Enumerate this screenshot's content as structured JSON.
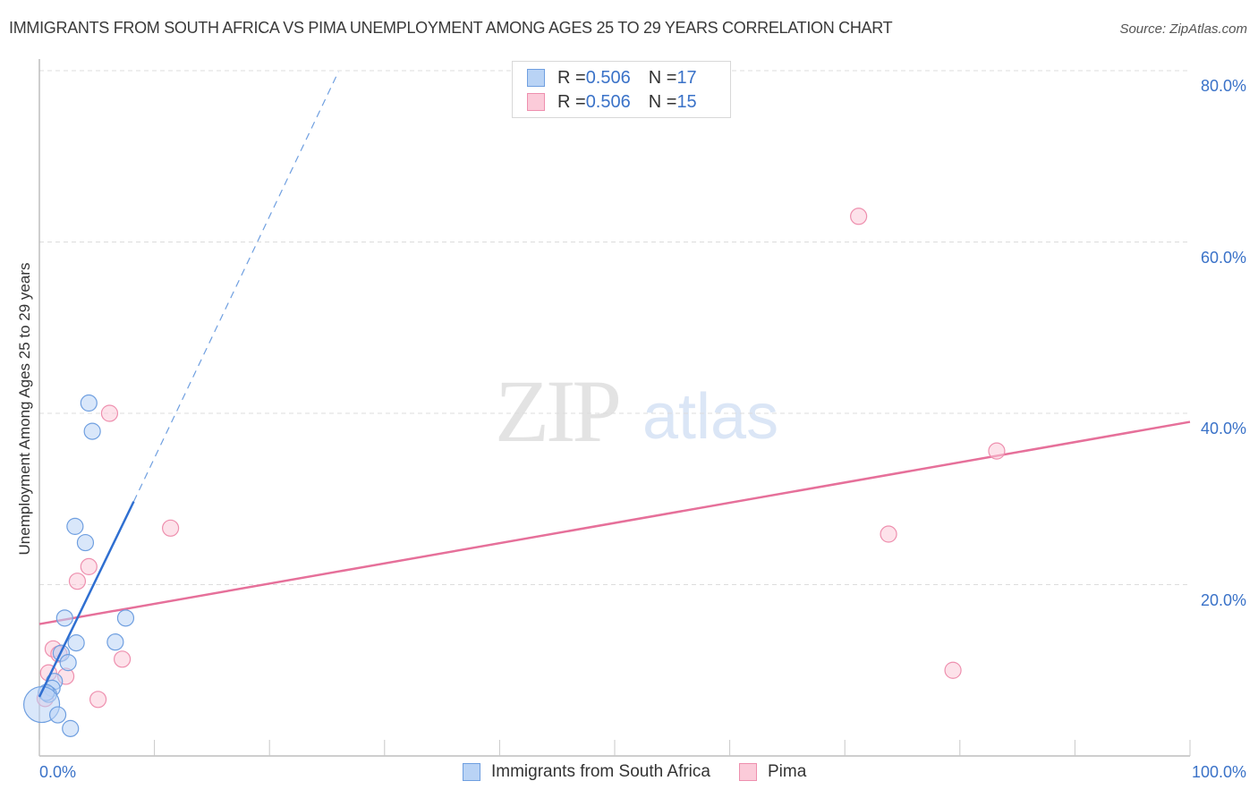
{
  "header": {
    "title": "IMMIGRANTS FROM SOUTH AFRICA VS PIMA UNEMPLOYMENT AMONG AGES 25 TO 29 YEARS CORRELATION CHART",
    "source": "Source: ZipAtlas.com"
  },
  "watermark": {
    "zip": "ZIP",
    "atlas": "atlas"
  },
  "legend_top": {
    "rows": [
      {
        "r_label": "R = ",
        "r_value": "0.506",
        "n_label": "N = ",
        "n_value": "17",
        "color": "#a9c8f0",
        "border": "#6f9fe0"
      },
      {
        "r_label": "R = ",
        "r_value": "0.506",
        "n_label": "N = ",
        "n_value": "15",
        "color": "#f9c3d4",
        "border": "#ee8fae"
      }
    ]
  },
  "legend_bottom": [
    {
      "label": "Immigrants from South Africa",
      "color": "#b9d3f5",
      "border": "#6f9fe0"
    },
    {
      "label": "Pima",
      "color": "#fbcbd9",
      "border": "#ee8fae"
    }
  ],
  "axes": {
    "y_title": "Unemployment Among Ages 25 to 29 years",
    "y_ticks": [
      "80.0%",
      "60.0%",
      "40.0%",
      "20.0%"
    ],
    "x_left": "0.0%",
    "x_right": "100.0%"
  },
  "chart_data": {
    "type": "scatter",
    "title": "IMMIGRANTS FROM SOUTH AFRICA VS PIMA UNEMPLOYMENT AMONG AGES 25 TO 29 YEARS CORRELATION CHART",
    "xlabel": "",
    "ylabel": "Unemployment Among Ages 25 to 29 years",
    "xlim": [
      0,
      100
    ],
    "ylim": [
      0,
      80
    ],
    "y_ticks": [
      20,
      40,
      60,
      80
    ],
    "x_tick_labels": [
      "0.0%",
      "100.0%"
    ],
    "grid": true,
    "legend_position": "top-center and bottom-center",
    "series": [
      {
        "name": "Immigrants from South Africa",
        "color": "#6f9fe0",
        "fill": "#b9d3f5",
        "R": 0.506,
        "N": 17,
        "points": [
          {
            "x": 4.3,
            "y": 41.2
          },
          {
            "x": 4.6,
            "y": 37.9
          },
          {
            "x": 3.1,
            "y": 26.8
          },
          {
            "x": 4.0,
            "y": 24.9
          },
          {
            "x": 2.2,
            "y": 16.1
          },
          {
            "x": 7.5,
            "y": 16.1
          },
          {
            "x": 3.2,
            "y": 13.2
          },
          {
            "x": 6.6,
            "y": 13.3
          },
          {
            "x": 1.9,
            "y": 12.0
          },
          {
            "x": 2.5,
            "y": 10.9
          },
          {
            "x": 1.3,
            "y": 8.7
          },
          {
            "x": 1.1,
            "y": 7.9
          },
          {
            "x": 0.8,
            "y": 7.2
          },
          {
            "x": 0.6,
            "y": 7.4
          },
          {
            "x": 0.2,
            "y": 6.0,
            "size": "large"
          },
          {
            "x": 1.6,
            "y": 4.8
          },
          {
            "x": 2.7,
            "y": 3.2
          }
        ],
        "trend": {
          "x0": 0,
          "y0": 6.9,
          "x1": 8.2,
          "y1": 29.7,
          "dashed_to": {
            "x": 26.0,
            "y": 79.9
          }
        }
      },
      {
        "name": "Pima",
        "color": "#ee8fae",
        "fill": "#fbcbd9",
        "R": 0.506,
        "N": 15,
        "points": [
          {
            "x": 71.2,
            "y": 63.0
          },
          {
            "x": 6.1,
            "y": 40.0
          },
          {
            "x": 83.2,
            "y": 35.6
          },
          {
            "x": 11.4,
            "y": 26.6
          },
          {
            "x": 73.8,
            "y": 25.9
          },
          {
            "x": 4.3,
            "y": 22.1
          },
          {
            "x": 3.3,
            "y": 20.4
          },
          {
            "x": 1.2,
            "y": 12.5
          },
          {
            "x": 1.7,
            "y": 11.9
          },
          {
            "x": 7.2,
            "y": 11.3
          },
          {
            "x": 0.8,
            "y": 9.7
          },
          {
            "x": 2.3,
            "y": 9.3
          },
          {
            "x": 79.4,
            "y": 10.0
          },
          {
            "x": 5.1,
            "y": 6.6
          },
          {
            "x": 0.5,
            "y": 6.7
          }
        ],
        "trend": {
          "x0": 0,
          "y0": 15.4,
          "x1": 100,
          "y1": 39.0
        }
      }
    ]
  }
}
